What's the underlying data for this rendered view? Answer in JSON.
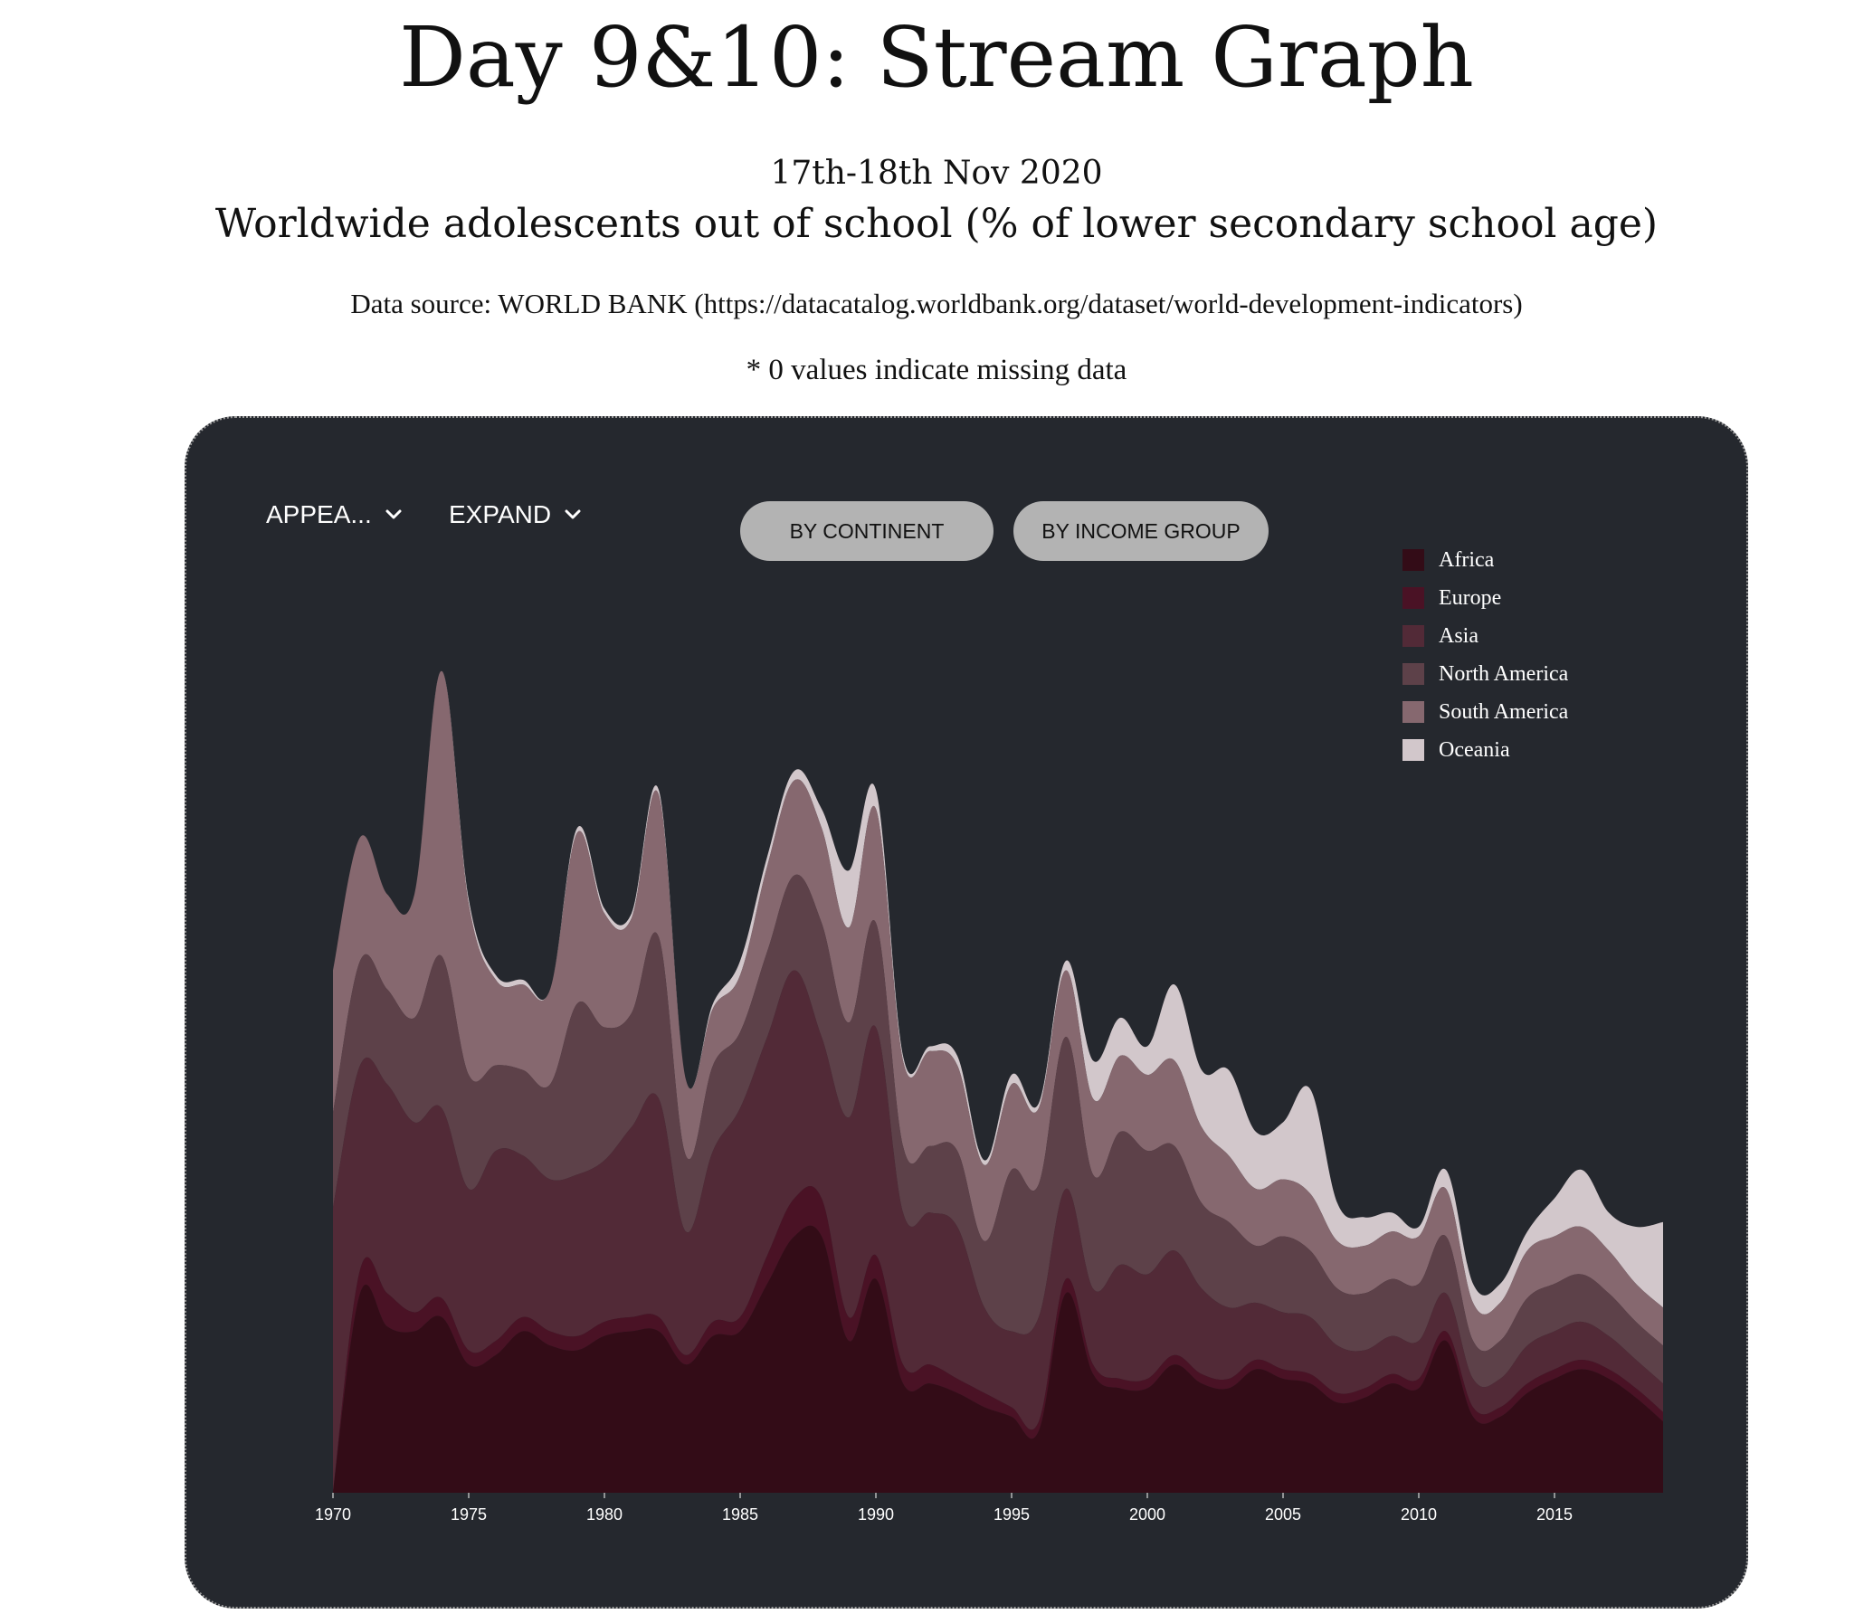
{
  "page": {
    "title": "Day 9&10: Stream Graph",
    "date": "17th-18th Nov 2020",
    "subtitle": "Worldwide adolescents out of school (% of lower secondary school age)",
    "source": "Data source: WORLD BANK (https://datacatalog.worldbank.org/dataset/world-development-indicators)",
    "note": "* 0 values indicate missing data"
  },
  "controls": {
    "mode_dropdown": "APPEA...",
    "offset_dropdown": "EXPAND",
    "buttons": [
      "BY CONTINENT",
      "BY INCOME GROUP"
    ],
    "button_bg": "#b3b3b3",
    "panel_bg": "#25282e"
  },
  "chart_data": {
    "type": "area",
    "subtype": "stream graph (stacked)",
    "x": [
      1970,
      1971,
      1972,
      1973,
      1974,
      1975,
      1976,
      1977,
      1978,
      1979,
      1980,
      1981,
      1982,
      1983,
      1984,
      1985,
      1986,
      1987,
      1988,
      1989,
      1990,
      1991,
      1992,
      1993,
      1994,
      1995,
      1996,
      1997,
      1998,
      1999,
      2000,
      2001,
      2002,
      2003,
      2004,
      2005,
      2006,
      2007,
      2008,
      2009,
      2010,
      2011,
      2012,
      2013,
      2014,
      2015,
      2016,
      2017,
      2018,
      2019
    ],
    "x_ticks": [
      "1970",
      "1975",
      "1980",
      "1985",
      "1990",
      "1995",
      "2000",
      "2005",
      "2010",
      "2015"
    ],
    "xlim": [
      1970,
      2019
    ],
    "legend_position": "top-right",
    "series": [
      {
        "name": "Africa",
        "color": "#330c17",
        "values": [
          0,
          210,
          175,
          170,
          185,
          135,
          145,
          170,
          155,
          150,
          165,
          170,
          170,
          135,
          165,
          170,
          220,
          270,
          270,
          160,
          225,
          115,
          115,
          105,
          90,
          80,
          65,
          210,
          125,
          110,
          110,
          135,
          115,
          110,
          130,
          120,
          115,
          95,
          100,
          115,
          110,
          160,
          80,
          80,
          105,
          120,
          130,
          120,
          100,
          75
        ]
      },
      {
        "name": "Europe",
        "color": "#4a1225",
        "values": [
          0,
          25,
          35,
          20,
          20,
          15,
          15,
          15,
          15,
          15,
          15,
          15,
          15,
          10,
          15,
          15,
          30,
          40,
          40,
          25,
          25,
          20,
          20,
          15,
          15,
          10,
          10,
          15,
          10,
          10,
          10,
          10,
          10,
          10,
          10,
          10,
          10,
          10,
          10,
          10,
          10,
          10,
          10,
          10,
          10,
          10,
          10,
          10,
          10,
          10
        ]
      },
      {
        "name": "Asia",
        "color": "#522a37",
        "values": [
          300,
          215,
          220,
          200,
          200,
          170,
          200,
          170,
          160,
          170,
          170,
          200,
          230,
          130,
          180,
          220,
          230,
          240,
          170,
          210,
          240,
          160,
          160,
          160,
          90,
          80,
          110,
          95,
          80,
          120,
          110,
          110,
          90,
          75,
          60,
          60,
          60,
          50,
          40,
          40,
          40,
          40,
          30,
          30,
          40,
          40,
          40,
          35,
          30,
          30
        ]
      },
      {
        "name": "North America",
        "color": "#5d4149",
        "values": [
          100,
          110,
          100,
          110,
          160,
          120,
          90,
          90,
          100,
          180,
          140,
          120,
          170,
          80,
          90,
          80,
          90,
          100,
          120,
          100,
          110,
          70,
          70,
          80,
          70,
          170,
          140,
          160,
          120,
          140,
          130,
          110,
          90,
          90,
          60,
          80,
          70,
          60,
          60,
          60,
          60,
          60,
          40,
          40,
          50,
          50,
          50,
          45,
          40,
          40
        ]
      },
      {
        "name": "South America",
        "color": "#86686f",
        "values": [
          150,
          130,
          100,
          130,
          300,
          180,
          90,
          90,
          100,
          180,
          120,
          100,
          150,
          80,
          60,
          60,
          90,
          100,
          100,
          100,
          120,
          90,
          100,
          90,
          80,
          90,
          80,
          70,
          80,
          80,
          80,
          90,
          80,
          70,
          60,
          60,
          60,
          50,
          50,
          50,
          50,
          50,
          40,
          40,
          50,
          50,
          50,
          45,
          40,
          40
        ]
      },
      {
        "name": "Oceania",
        "color": "#d2c7cb",
        "values": [
          0,
          0,
          0,
          0,
          0,
          5,
          5,
          5,
          0,
          5,
          5,
          5,
          5,
          0,
          5,
          15,
          10,
          10,
          20,
          60,
          20,
          5,
          5,
          10,
          5,
          10,
          5,
          10,
          40,
          40,
          30,
          80,
          60,
          90,
          60,
          60,
          110,
          40,
          30,
          20,
          10,
          20,
          20,
          20,
          20,
          40,
          60,
          40,
          60,
          90
        ]
      }
    ]
  }
}
